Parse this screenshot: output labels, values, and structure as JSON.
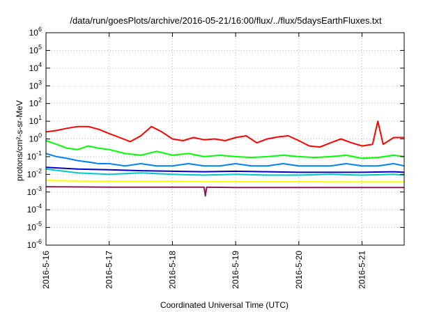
{
  "chart_data": {
    "type": "line",
    "title": "/data/run/goesPlots/archive/2016-05-21/16:00/flux/../flux/5daysEarthFluxes.txt",
    "xlabel": "Coordinated Universal Time (UTC)",
    "ylabel": "protons/cm²-s-sr-MeV",
    "y_scale": "log",
    "ylim": [
      1e-06,
      1000000.0
    ],
    "y_ticks": [
      {
        "value": 1e-06,
        "base": "10",
        "exp": "-6"
      },
      {
        "value": 1e-05,
        "base": "10",
        "exp": "-5"
      },
      {
        "value": 0.0001,
        "base": "10",
        "exp": "-4"
      },
      {
        "value": 0.001,
        "base": "10",
        "exp": "-3"
      },
      {
        "value": 0.01,
        "base": "10",
        "exp": "-2"
      },
      {
        "value": 0.1,
        "base": "10",
        "exp": "-1"
      },
      {
        "value": 1.0,
        "base": "10",
        "exp": "0"
      },
      {
        "value": 10.0,
        "base": "10",
        "exp": "1"
      },
      {
        "value": 100.0,
        "base": "10",
        "exp": "2"
      },
      {
        "value": 1000.0,
        "base": "10",
        "exp": "3"
      },
      {
        "value": 10000.0,
        "base": "10",
        "exp": "4"
      },
      {
        "value": 100000.0,
        "base": "10",
        "exp": "5"
      },
      {
        "value": 1000000.0,
        "base": "10",
        "exp": "6"
      }
    ],
    "xlim": [
      "2016-05-16",
      "2016-05-21 16:00"
    ],
    "x_ticks": [
      {
        "value": "2016-05-16",
        "label": "2016-5-16"
      },
      {
        "value": "2016-05-17",
        "label": "2016-5-17"
      },
      {
        "value": "2016-05-18",
        "label": "2016-5-18"
      },
      {
        "value": "2016-05-19",
        "label": "2016-5-19"
      },
      {
        "value": "2016-05-20",
        "label": "2016-5-20"
      },
      {
        "value": "2016-05-21",
        "label": "2016-5-21"
      }
    ],
    "grid": true,
    "series": [
      {
        "color": "#ff0000",
        "x": [
          "2016-05-16 00:00",
          "2016-05-16 04:00",
          "2016-05-16 08:00",
          "2016-05-16 12:00",
          "2016-05-16 16:00",
          "2016-05-16 20:00",
          "2016-05-17 00:00",
          "2016-05-17 04:00",
          "2016-05-17 08:00",
          "2016-05-17 12:00",
          "2016-05-17 16:00",
          "2016-05-17 20:00",
          "2016-05-18 00:00",
          "2016-05-18 04:00",
          "2016-05-18 08:00",
          "2016-05-18 12:00",
          "2016-05-18 16:00",
          "2016-05-18 20:00",
          "2016-05-19 00:00",
          "2016-05-19 04:00",
          "2016-05-19 08:00",
          "2016-05-19 12:00",
          "2016-05-19 16:00",
          "2016-05-19 20:00",
          "2016-05-20 00:00",
          "2016-05-20 04:00",
          "2016-05-20 08:00",
          "2016-05-20 12:00",
          "2016-05-20 16:00",
          "2016-05-20 20:00",
          "2016-05-21 00:00",
          "2016-05-21 04:00",
          "2016-05-21 06:00",
          "2016-05-21 08:00",
          "2016-05-21 12:00",
          "2016-05-21 16:00"
        ],
        "values": [
          2.5,
          3,
          4,
          5,
          5,
          3.5,
          2,
          1.2,
          0.7,
          1.5,
          5,
          2.5,
          1,
          0.8,
          1.2,
          0.9,
          1,
          0.8,
          1.2,
          1.5,
          0.6,
          1,
          1.3,
          1.5,
          0.8,
          0.4,
          0.35,
          0.6,
          1,
          0.6,
          0.4,
          0.5,
          10,
          0.5,
          1.2,
          1.2
        ]
      },
      {
        "color": "#00ff00",
        "x": [
          "2016-05-16 00:00",
          "2016-05-16 04:00",
          "2016-05-16 08:00",
          "2016-05-16 12:00",
          "2016-05-16 16:00",
          "2016-05-16 20:00",
          "2016-05-17 00:00",
          "2016-05-17 06:00",
          "2016-05-17 12:00",
          "2016-05-17 18:00",
          "2016-05-18 00:00",
          "2016-05-18 06:00",
          "2016-05-18 12:00",
          "2016-05-18 18:00",
          "2016-05-19 00:00",
          "2016-05-19 06:00",
          "2016-05-19 12:00",
          "2016-05-19 18:00",
          "2016-05-20 00:00",
          "2016-05-20 06:00",
          "2016-05-20 12:00",
          "2016-05-20 18:00",
          "2016-05-21 00:00",
          "2016-05-21 06:00",
          "2016-05-21 12:00",
          "2016-05-21 16:00"
        ],
        "values": [
          0.8,
          0.5,
          0.3,
          0.25,
          0.4,
          0.3,
          0.25,
          0.15,
          0.12,
          0.2,
          0.12,
          0.15,
          0.1,
          0.12,
          0.1,
          0.09,
          0.1,
          0.12,
          0.1,
          0.09,
          0.1,
          0.12,
          0.08,
          0.09,
          0.12,
          0.1
        ]
      },
      {
        "color": "#0080ff",
        "x": [
          "2016-05-16 00:00",
          "2016-05-16 04:00",
          "2016-05-16 08:00",
          "2016-05-16 12:00",
          "2016-05-16 16:00",
          "2016-05-16 20:00",
          "2016-05-17 00:00",
          "2016-05-17 06:00",
          "2016-05-17 12:00",
          "2016-05-17 18:00",
          "2016-05-18 00:00",
          "2016-05-18 06:00",
          "2016-05-18 12:00",
          "2016-05-18 18:00",
          "2016-05-19 00:00",
          "2016-05-19 06:00",
          "2016-05-19 12:00",
          "2016-05-19 18:00",
          "2016-05-20 00:00",
          "2016-05-20 06:00",
          "2016-05-20 12:00",
          "2016-05-20 18:00",
          "2016-05-21 00:00",
          "2016-05-21 06:00",
          "2016-05-21 12:00",
          "2016-05-21 16:00"
        ],
        "values": [
          0.15,
          0.1,
          0.08,
          0.06,
          0.05,
          0.04,
          0.04,
          0.03,
          0.04,
          0.03,
          0.03,
          0.04,
          0.03,
          0.03,
          0.04,
          0.03,
          0.03,
          0.04,
          0.03,
          0.03,
          0.03,
          0.04,
          0.03,
          0.03,
          0.04,
          0.03
        ]
      },
      {
        "color": "#00c8c8",
        "x": [
          "2016-05-16 00:00",
          "2016-05-16 12:00",
          "2016-05-17 00:00",
          "2016-05-17 12:00",
          "2016-05-18 00:00",
          "2016-05-18 12:00",
          "2016-05-19 00:00",
          "2016-05-19 12:00",
          "2016-05-20 00:00",
          "2016-05-20 12:00",
          "2016-05-21 00:00",
          "2016-05-21 12:00",
          "2016-05-21 16:00"
        ],
        "values": [
          0.02,
          0.012,
          0.01,
          0.012,
          0.01,
          0.009,
          0.01,
          0.009,
          0.009,
          0.01,
          0.009,
          0.01,
          0.009
        ]
      },
      {
        "color": "#0000c8",
        "x": [
          "2016-05-16 00:00",
          "2016-05-16 12:00",
          "2016-05-17 00:00",
          "2016-05-17 12:00",
          "2016-05-18 00:00",
          "2016-05-18 12:00",
          "2016-05-19 00:00",
          "2016-05-19 12:00",
          "2016-05-20 00:00",
          "2016-05-20 12:00",
          "2016-05-21 00:00",
          "2016-05-21 12:00",
          "2016-05-21 16:00"
        ],
        "values": [
          0.025,
          0.02,
          0.018,
          0.016,
          0.015,
          0.014,
          0.015,
          0.014,
          0.013,
          0.013,
          0.013,
          0.014,
          0.013
        ]
      },
      {
        "color": "#ffff00",
        "x": [
          "2016-05-16 00:00",
          "2016-05-17 00:00",
          "2016-05-18 00:00",
          "2016-05-19 00:00",
          "2016-05-20 00:00",
          "2016-05-21 00:00",
          "2016-05-21 16:00"
        ],
        "values": [
          0.0045,
          0.004,
          0.004,
          0.0038,
          0.0038,
          0.0037,
          0.0037
        ]
      },
      {
        "color": "#8b1a5a",
        "x": [
          "2016-05-16 00:00",
          "2016-05-17 00:00",
          "2016-05-18 00:00",
          "2016-05-18 12:00",
          "2016-05-18 12:30",
          "2016-05-18 13:00",
          "2016-05-19 00:00",
          "2016-05-20 00:00",
          "2016-05-21 00:00",
          "2016-05-21 16:00"
        ],
        "values": [
          0.002,
          0.0019,
          0.0019,
          0.0019,
          0.0006,
          0.0019,
          0.0018,
          0.0018,
          0.0018,
          0.0018
        ]
      }
    ]
  }
}
